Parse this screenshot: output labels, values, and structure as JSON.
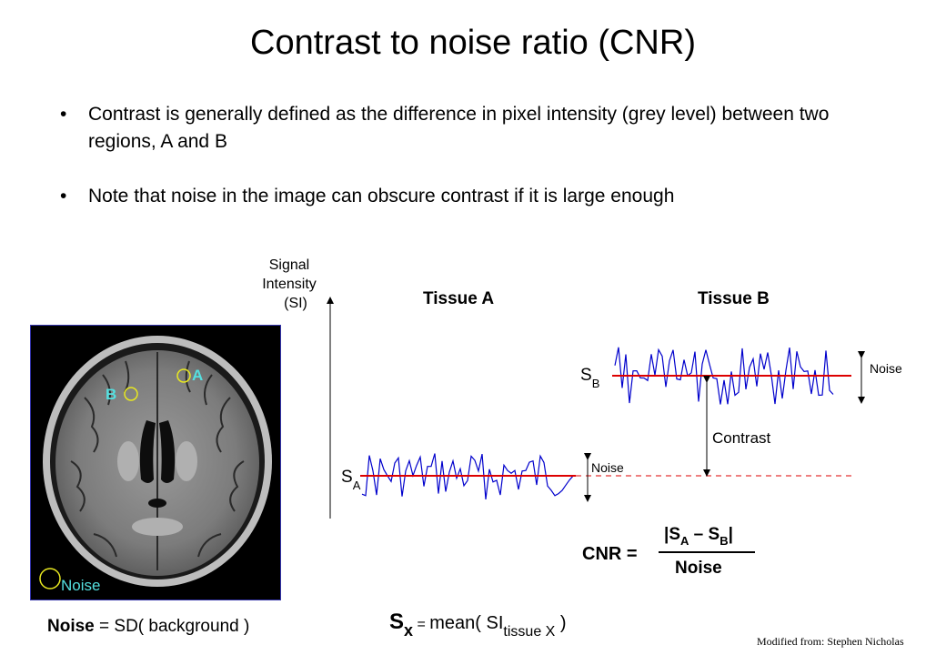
{
  "title": "Contrast to noise ratio  (CNR)",
  "bullets": [
    "Contrast is generally defined as the difference in pixel intensity (grey level) between two regions, A and B",
    "Note that noise in the image can obscure contrast if it is large enough"
  ],
  "axis_label": [
    "Signal",
    "Intensity",
    "(SI)"
  ],
  "tissue_a_label": "Tissue A",
  "tissue_b_label": "Tissue B",
  "sa_label": "S",
  "sa_sub": "A",
  "sb_label": "S",
  "sb_sub": "B",
  "noise_label_a": "Noise",
  "noise_label_b": "Noise",
  "contrast_label": "Contrast",
  "mri_labels": {
    "a": "A",
    "b": "B",
    "noise": "Noise"
  },
  "cnr": {
    "label": "CNR =",
    "num_open": "|S",
    "num_sub_a": "A",
    "num_mid": " – S",
    "num_sub_b": "B",
    "num_close": "|",
    "denominator": "Noise"
  },
  "noise_def": {
    "bold": "Noise",
    "rest": " = SD( background )"
  },
  "sx_def": {
    "s": "S",
    "sub_x": "x",
    "eq": " = ",
    "mean": "mean( SI",
    "sub_tissue": "tissue X",
    "close": " )"
  },
  "credit": "Modified from: Stephen Nicholas",
  "colors": {
    "signal": "#0000cc",
    "mean": "#dd0000",
    "mri_label": "#55e0e0",
    "frame": "#3333aa"
  }
}
